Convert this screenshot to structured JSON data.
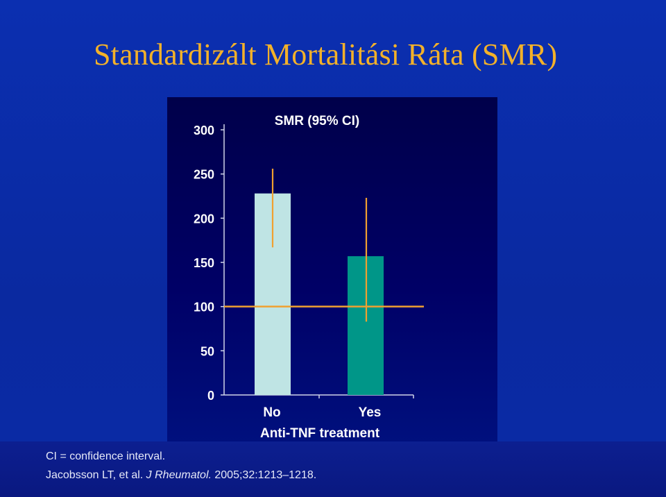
{
  "slide": {
    "title": "Standardizált Mortalitási Ráta (SMR)"
  },
  "colors": {
    "title": "#f3b12a",
    "bar_no": "#bfe4e4",
    "bar_yes": "#009688",
    "error_bar": "#f0a030",
    "reference_line": "#f0a030",
    "axis_text": "#ffffff"
  },
  "chart_data": {
    "type": "bar",
    "title": "SMR (95% CI)",
    "xlabel": "Anti-TNF treatment",
    "ylabel": "",
    "categories": [
      "No",
      "Yes"
    ],
    "values": [
      228,
      157
    ],
    "ci_lower": [
      167,
      83
    ],
    "ci_upper": [
      256,
      223
    ],
    "reference_line": 100,
    "ylim": [
      0,
      300
    ],
    "yticks": [
      "0",
      "50",
      "100",
      "150",
      "200",
      "250",
      "300"
    ],
    "grid": false
  },
  "footer": {
    "line1": "CI = confidence interval.",
    "line2_prefix": "Jacobsson LT, et al. ",
    "line2_journal": "J Rheumatol.",
    "line2_suffix": " 2005;32:1213–1218."
  }
}
